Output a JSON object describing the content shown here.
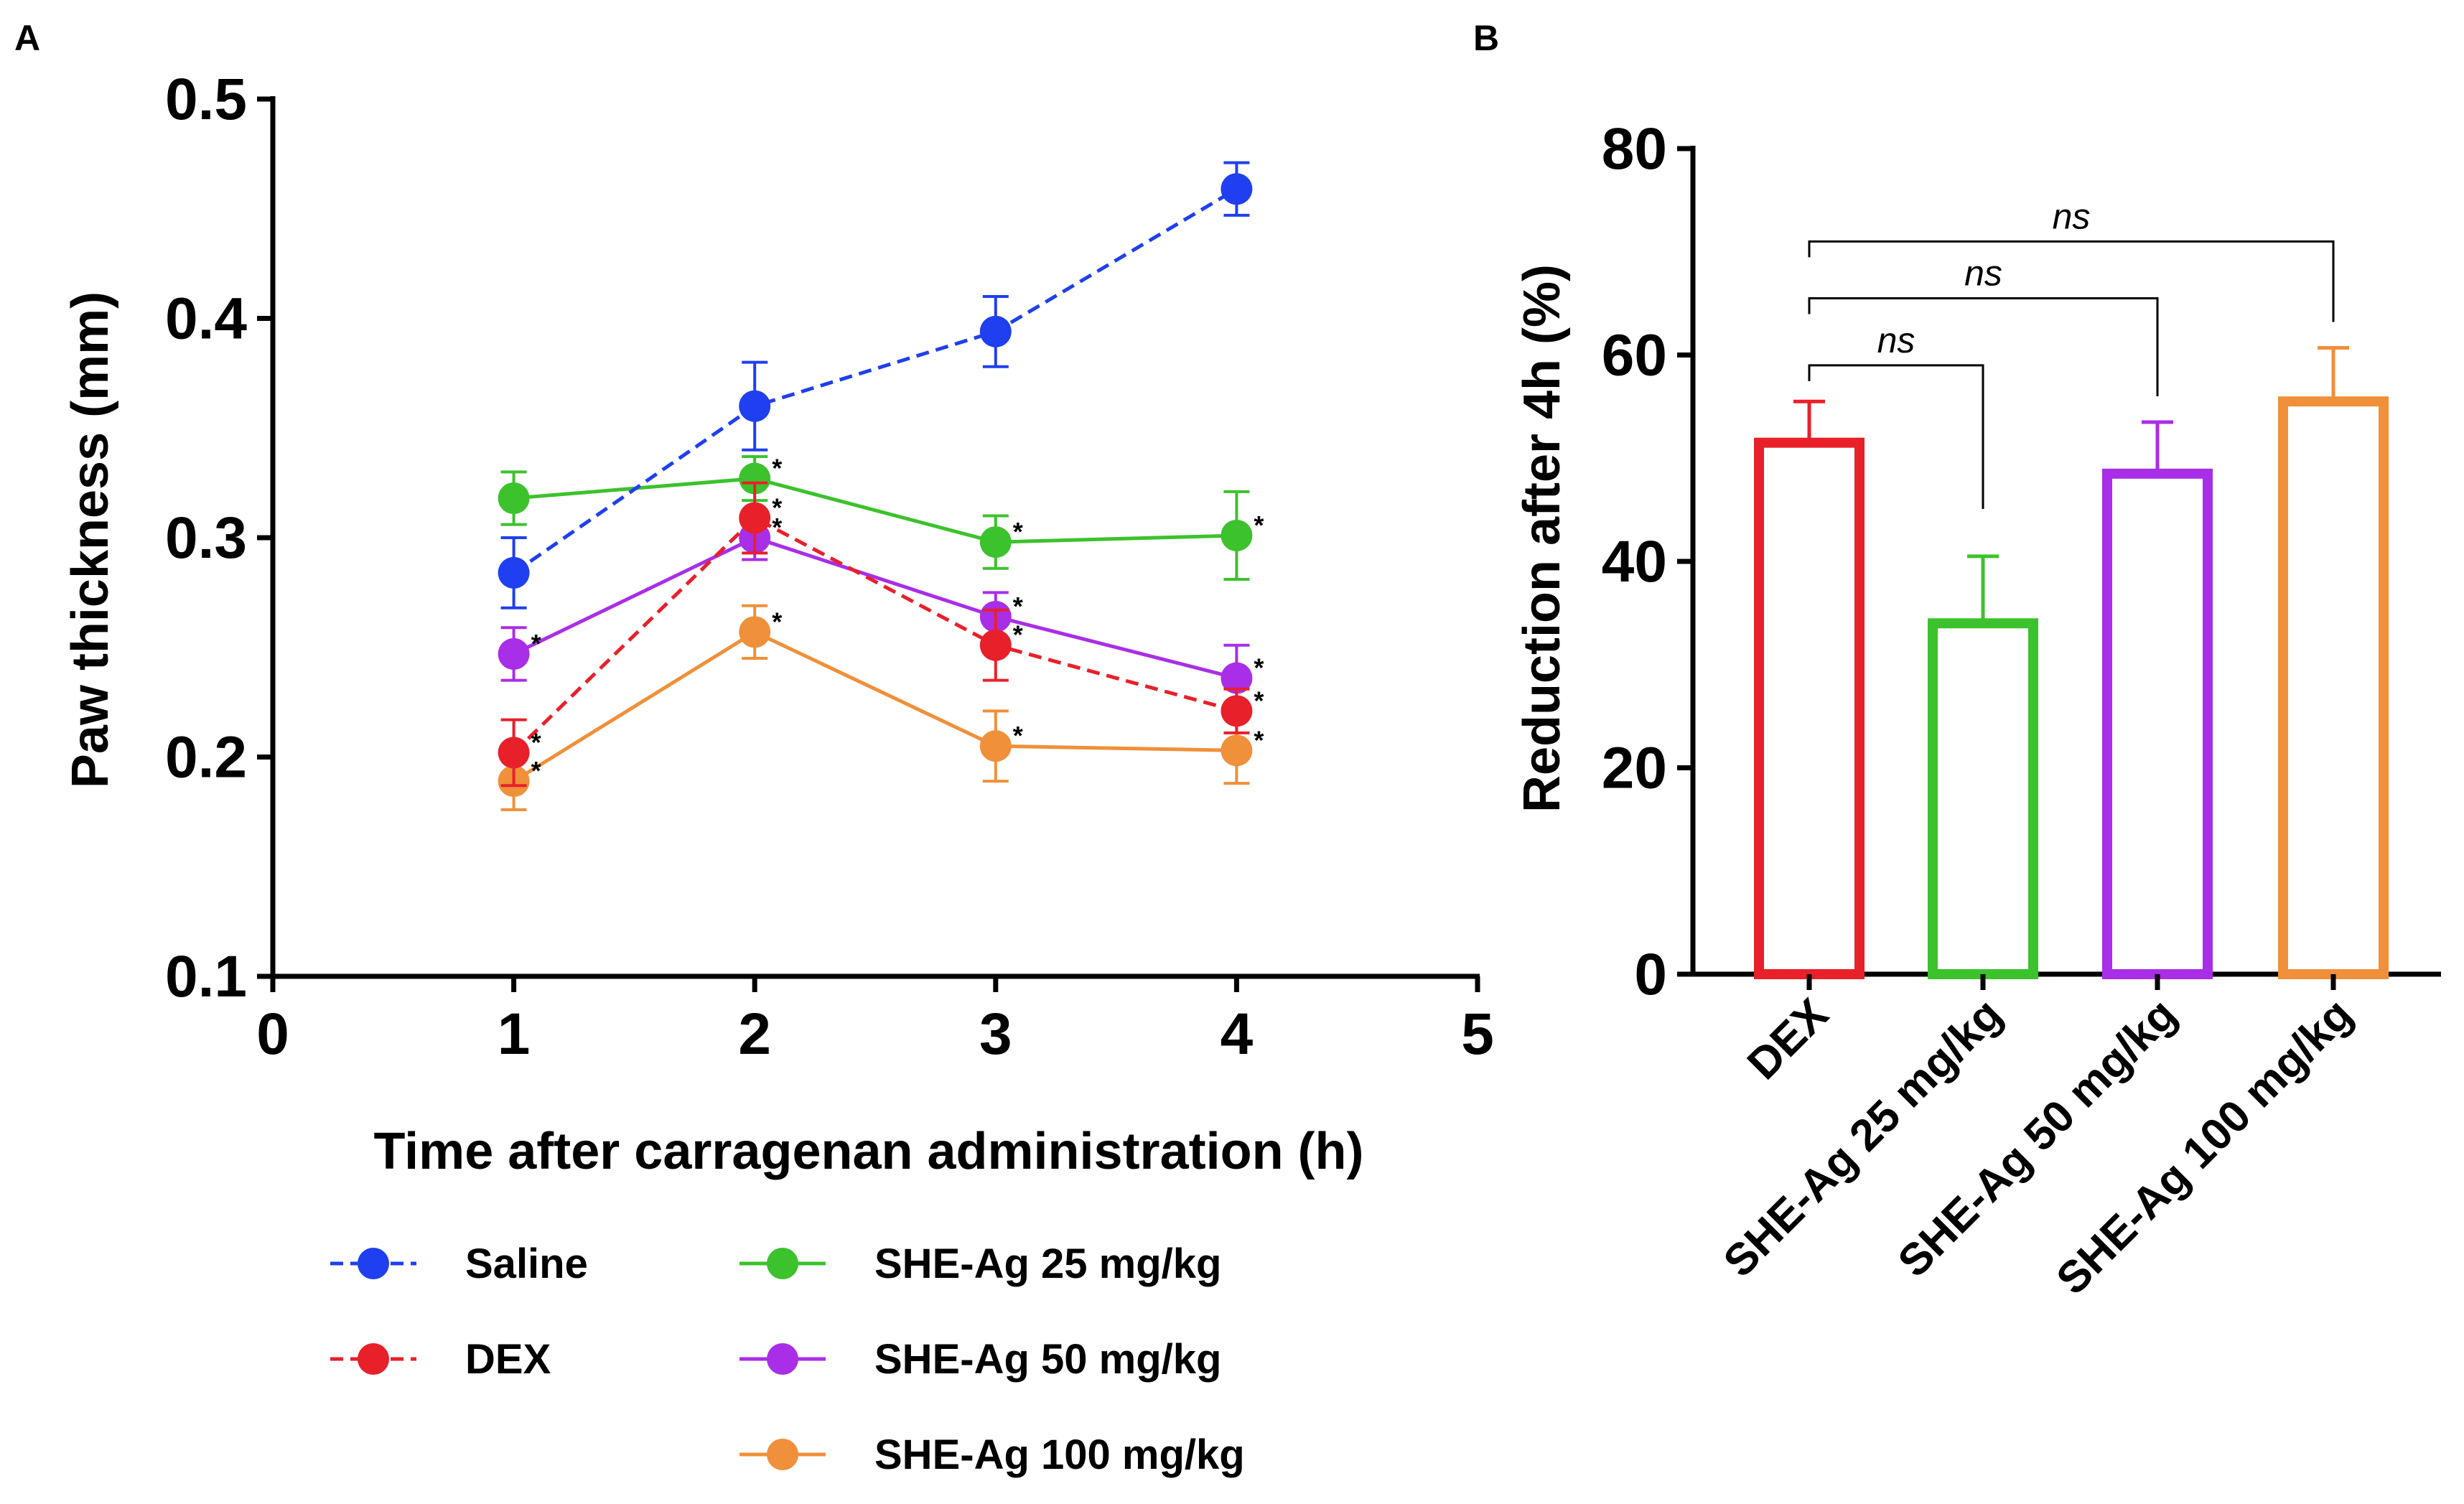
{
  "chart_data": [
    {
      "panel": "A",
      "type": "line",
      "xlabel": "Time after carragenan administration (h)",
      "ylabel": "Paw thickness (mm)",
      "xlim": [
        0,
        5
      ],
      "ylim": [
        0.1,
        0.5
      ],
      "xticks": [
        0,
        1,
        2,
        3,
        4,
        5
      ],
      "yticks": [
        0.1,
        0.2,
        0.3,
        0.4,
        0.5
      ],
      "x": [
        1,
        2,
        3,
        4
      ],
      "legend_position": "bottom",
      "series": [
        {
          "name": "Saline",
          "color": "#1f3ff0",
          "dashed": true,
          "values": [
            0.284,
            0.36,
            0.394,
            0.459
          ],
          "errors": [
            0.016,
            0.02,
            0.016,
            0.012
          ],
          "stars": [
            false,
            false,
            false,
            false
          ]
        },
        {
          "name": "DEX",
          "color": "#e8202a",
          "dashed": true,
          "values": [
            0.202,
            0.309,
            0.251,
            0.221
          ],
          "errors": [
            0.015,
            0.016,
            0.016,
            0.01
          ],
          "stars": [
            true,
            true,
            true,
            true
          ]
        },
        {
          "name": "SHE-Ag 25 mg/kg",
          "color": "#3cc22c",
          "dashed": false,
          "values": [
            0.318,
            0.327,
            0.298,
            0.301
          ],
          "errors": [
            0.012,
            0.01,
            0.012,
            0.02
          ],
          "stars": [
            false,
            true,
            true,
            true
          ]
        },
        {
          "name": "SHE-Ag 50 mg/kg",
          "color": "#a92ee8",
          "dashed": false,
          "values": [
            0.247,
            0.3,
            0.264,
            0.236
          ],
          "errors": [
            0.012,
            0.01,
            0.011,
            0.015
          ],
          "stars": [
            true,
            true,
            true,
            true
          ]
        },
        {
          "name": "SHE-Ag 100 mg/kg",
          "color": "#f0903a",
          "dashed": false,
          "values": [
            0.189,
            0.257,
            0.205,
            0.203
          ],
          "errors": [
            0.013,
            0.012,
            0.016,
            0.015
          ],
          "stars": [
            true,
            true,
            true,
            true
          ]
        }
      ]
    },
    {
      "panel": "B",
      "type": "bar",
      "ylabel": "Reduction after 4h (%)",
      "ylim": [
        0,
        80
      ],
      "yticks": [
        0,
        20,
        40,
        60,
        80
      ],
      "categories": [
        "DEX",
        "SHE-Ag 25 mg/kg",
        "SHE-Ag 50 mg/kg",
        "SHE-Ag 100 mg/kg"
      ],
      "values": [
        51.5,
        34.0,
        48.5,
        55.5
      ],
      "errors": [
        4.0,
        6.5,
        5.0,
        5.2
      ],
      "colors": [
        "#e8202a",
        "#3cc22c",
        "#a92ee8",
        "#f0903a"
      ],
      "comparisons": [
        {
          "from": "DEX",
          "to": "SHE-Ag 25 mg/kg",
          "label": "ns"
        },
        {
          "from": "DEX",
          "to": "SHE-Ag 50 mg/kg",
          "label": "ns"
        },
        {
          "from": "DEX",
          "to": "SHE-Ag 100 mg/kg",
          "label": "ns"
        }
      ]
    }
  ],
  "significance_marker": "*"
}
